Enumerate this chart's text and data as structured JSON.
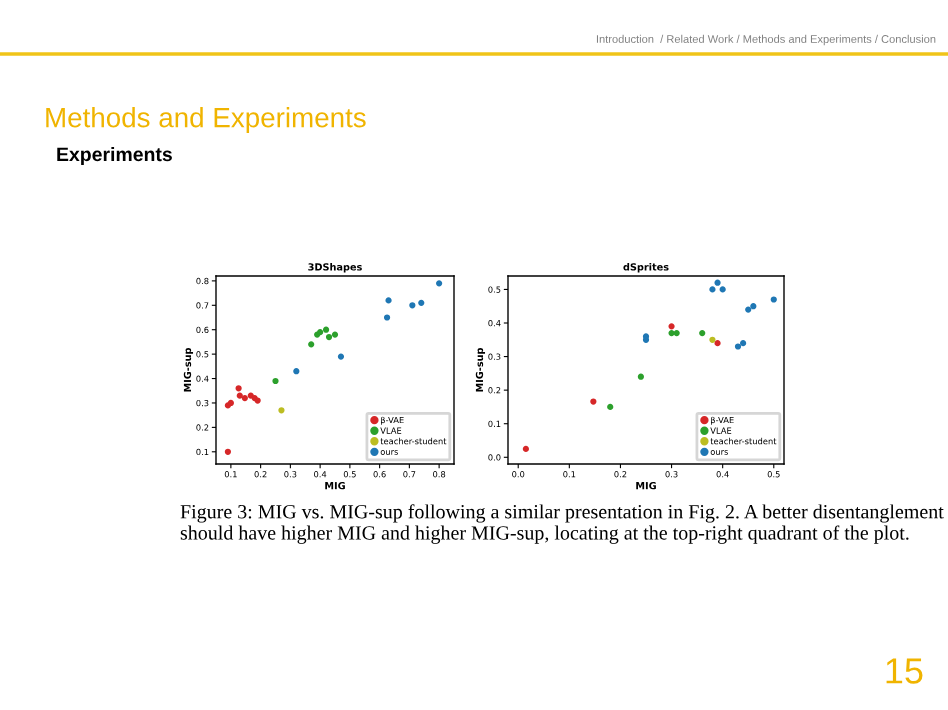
{
  "chart_data": [
    {
      "type": "scatter",
      "title": "3DShapes",
      "xlabel": "MIG",
      "ylabel": "MIG-sup",
      "xlim": [
        0.05,
        0.85
      ],
      "ylim": [
        0.05,
        0.82
      ],
      "xticks": [
        0.1,
        0.2,
        0.3,
        0.4,
        0.5,
        0.6,
        0.7,
        0.8
      ],
      "yticks": [
        0.1,
        0.2,
        0.3,
        0.4,
        0.5,
        0.6,
        0.7,
        0.8
      ],
      "marker": "circle",
      "legend": "bottom right",
      "grid": false,
      "annotations": [
        "Introduction  / Related Work / Methods and Experiments / Conclusion",
        "Methods and Experiments",
        "Experiments",
        "Figure 3: MIG vs. MIG-sup following a similar presentation in Fig. 2. A better disentanglement should have higher MIG and higher MIG-sup, locating at the top-right quadrant of the plot.",
        "15"
      ],
      "series": [
        {
          "name": "β-VAE",
          "color": "#d62728",
          "x": [
            0.09,
            0.09,
            0.1,
            0.126,
            0.13,
            0.147,
            0.167,
            0.18,
            0.19
          ],
          "values": [
            0.1,
            0.29,
            0.3,
            0.36,
            0.33,
            0.32,
            0.33,
            0.32,
            0.31
          ]
        },
        {
          "name": "VLAE",
          "color": "#2ca02c",
          "x": [
            0.25,
            0.37,
            0.39,
            0.4,
            0.42,
            0.43,
            0.45
          ],
          "values": [
            0.39,
            0.54,
            0.58,
            0.59,
            0.6,
            0.57,
            0.58
          ]
        },
        {
          "name": "teacher-student",
          "color": "#bcbd22",
          "x": [
            0.27
          ],
          "values": [
            0.27
          ]
        },
        {
          "name": "ours",
          "color": "#1f77b4",
          "x": [
            0.32,
            0.47,
            0.625,
            0.63,
            0.71,
            0.74,
            0.8
          ],
          "values": [
            0.43,
            0.49,
            0.65,
            0.72,
            0.7,
            0.71,
            0.79
          ]
        }
      ]
    },
    {
      "type": "scatter",
      "title": "dSprites",
      "xlabel": "MIG",
      "ylabel": "MIG-sup",
      "xlim": [
        -0.02,
        0.52
      ],
      "ylim": [
        -0.02,
        0.54
      ],
      "xticks": [
        {
          "value": 0,
          "label": "0.0"
        },
        0.1,
        0.2,
        0.3,
        0.4,
        0.5
      ],
      "yticks": [
        {
          "value": 0,
          "label": "0.0"
        },
        0.1,
        0.2,
        0.3,
        0.4,
        0.5
      ],
      "marker": "circle",
      "legend": "bottom right",
      "grid": false,
      "series": [
        {
          "name": "β-VAE",
          "color": "#d62728",
          "x": [
            0.015,
            0.147,
            0.3,
            0.39
          ],
          "values": [
            0.025,
            0.166,
            0.39,
            0.34
          ]
        },
        {
          "name": "VLAE",
          "color": "#2ca02c",
          "x": [
            0.18,
            0.24,
            0.3,
            0.31,
            0.36
          ],
          "values": [
            0.15,
            0.24,
            0.37,
            0.37,
            0.37
          ]
        },
        {
          "name": "teacher-student",
          "color": "#bcbd22",
          "x": [
            0.38
          ],
          "values": [
            0.35
          ]
        },
        {
          "name": "ours",
          "color": "#1f77b4",
          "x": [
            0.25,
            0.25,
            0.38,
            0.39,
            0.4,
            0.43,
            0.44,
            0.45,
            0.46,
            0.5
          ],
          "values": [
            0.35,
            0.36,
            0.5,
            0.52,
            0.5,
            0.33,
            0.34,
            0.44,
            0.45,
            0.47
          ]
        }
      ]
    }
  ]
}
